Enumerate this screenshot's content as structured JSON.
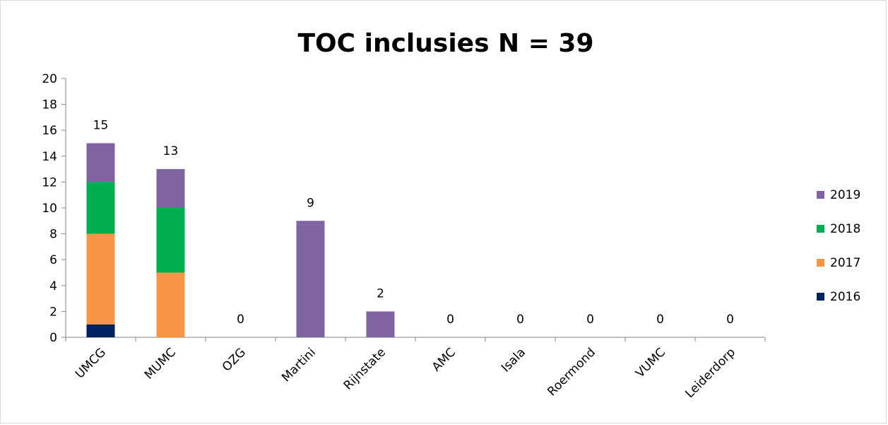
{
  "chart_data": {
    "type": "bar",
    "stacked": true,
    "title": "TOC inclusies N = 39",
    "xlabel": "",
    "ylabel": "",
    "ylim": [
      0,
      20
    ],
    "yticks": [
      0,
      2,
      4,
      6,
      8,
      10,
      12,
      14,
      16,
      18,
      20
    ],
    "grid": false,
    "legend_position": "right",
    "categories": [
      "UMCG",
      "MUMC",
      "OZG",
      "Martini",
      "Rijnstate",
      "AMC",
      "Isala",
      "Roermond",
      "VUMC",
      "Leiderdorp"
    ],
    "series": [
      {
        "name": "2016",
        "color": "#002060",
        "values": [
          1,
          0,
          0,
          0,
          0,
          0,
          0,
          0,
          0,
          0
        ]
      },
      {
        "name": "2017",
        "color": "#F79646",
        "values": [
          7,
          5,
          0,
          0,
          0,
          0,
          0,
          0,
          0,
          0
        ]
      },
      {
        "name": "2018",
        "color": "#00B050",
        "values": [
          4,
          5,
          0,
          0,
          0,
          0,
          0,
          0,
          0,
          0
        ]
      },
      {
        "name": "2019",
        "color": "#8064A2",
        "values": [
          3,
          3,
          0,
          9,
          2,
          0,
          0,
          0,
          0,
          0
        ]
      }
    ],
    "totals": [
      15,
      13,
      0,
      9,
      2,
      0,
      0,
      0,
      0,
      0
    ],
    "legend_order": [
      "2019",
      "2018",
      "2017",
      "2016"
    ]
  }
}
